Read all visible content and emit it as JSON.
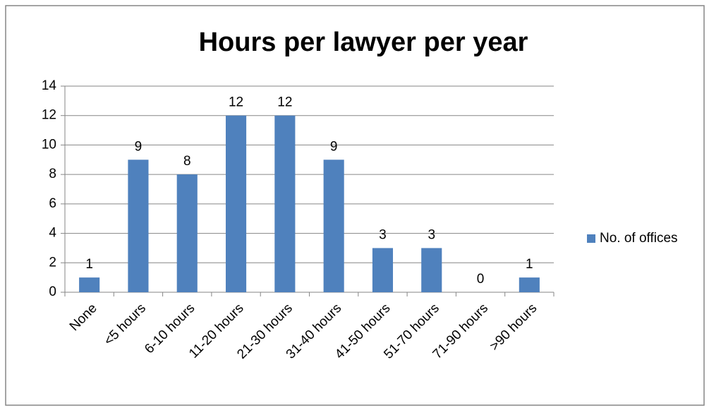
{
  "chart_data": {
    "type": "bar",
    "title": "Hours per lawyer per year",
    "categories": [
      "None",
      "<5 hours",
      "6-10 hours",
      "11-20 hours",
      "21-30 hours",
      "31-40 hours",
      "41-50 hours",
      "51-70 hours",
      "71-90 hours",
      ">90 hours"
    ],
    "series": [
      {
        "name": "No. of offices",
        "color": "#4f81bd",
        "values": [
          1,
          9,
          8,
          12,
          12,
          9,
          3,
          3,
          0,
          1
        ]
      }
    ],
    "ylim": [
      0,
      14
    ],
    "yticks": [
      0,
      2,
      4,
      6,
      8,
      10,
      12,
      14
    ],
    "grid": true,
    "legend": "right"
  }
}
